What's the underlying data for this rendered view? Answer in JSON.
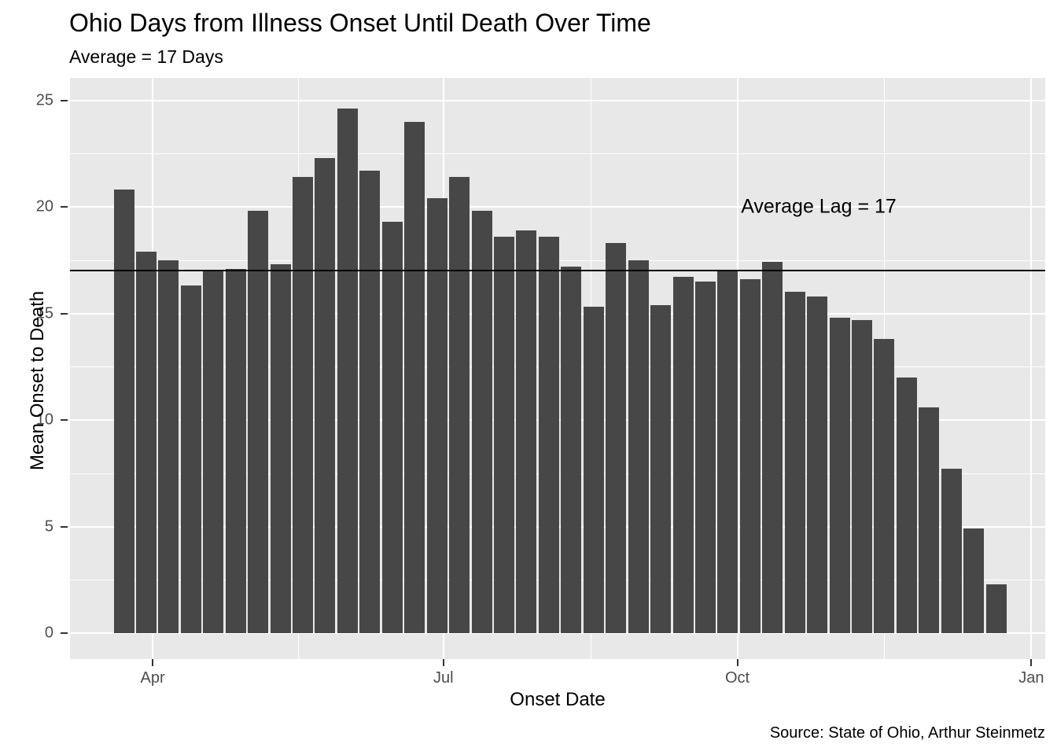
{
  "chart_data": {
    "type": "bar",
    "title": "Ohio Days from Illness Onset Until Death Over Time",
    "subtitle": "Average = 17 Days",
    "xlabel": "Onset Date",
    "ylabel": "Mean Onset to Death",
    "caption": "Source: State of Ohio, Arthur Steinmetz",
    "annotation": "Average Lag = 17",
    "reference_line_y": 17,
    "x": [
      "2020-03-23",
      "2020-03-30",
      "2020-04-06",
      "2020-04-13",
      "2020-04-20",
      "2020-04-27",
      "2020-05-04",
      "2020-05-11",
      "2020-05-18",
      "2020-05-25",
      "2020-06-01",
      "2020-06-08",
      "2020-06-15",
      "2020-06-22",
      "2020-06-29",
      "2020-07-06",
      "2020-07-13",
      "2020-07-20",
      "2020-07-27",
      "2020-08-03",
      "2020-08-10",
      "2020-08-17",
      "2020-08-24",
      "2020-08-31",
      "2020-09-07",
      "2020-09-14",
      "2020-09-21",
      "2020-09-28",
      "2020-10-05",
      "2020-10-12",
      "2020-10-19",
      "2020-10-26",
      "2020-11-02",
      "2020-11-09",
      "2020-11-16",
      "2020-11-23",
      "2020-11-30",
      "2020-12-07",
      "2020-12-14",
      "2020-12-21"
    ],
    "values": [
      20.8,
      17.9,
      17.5,
      16.3,
      17.0,
      17.1,
      19.8,
      17.3,
      21.4,
      22.3,
      24.6,
      21.7,
      19.3,
      24.0,
      20.4,
      21.4,
      19.8,
      18.6,
      18.9,
      18.6,
      17.2,
      15.3,
      18.3,
      17.5,
      15.4,
      16.7,
      16.5,
      17.0,
      16.6,
      17.4,
      16.0,
      15.8,
      14.8,
      14.7,
      13.8,
      12.0,
      10.6,
      7.7,
      4.9,
      2.3
    ],
    "x_ticks": [
      {
        "date": "2020-04-01",
        "label": "Apr"
      },
      {
        "date": "2020-07-01",
        "label": "Jul"
      },
      {
        "date": "2020-10-01",
        "label": "Oct"
      },
      {
        "date": "2021-01-01",
        "label": "Jan"
      }
    ],
    "y_ticks": [
      0,
      5,
      10,
      15,
      20,
      25
    ],
    "ylim": [
      0,
      25
    ],
    "grid": true,
    "legend_position": "none"
  },
  "colors": {
    "bar": "#474747",
    "panel_bg": "#E8E8E8",
    "gridline": "#FFFFFF",
    "tick_label": "#4D4D4D",
    "reference_line": "#000000",
    "text": "#000000"
  }
}
